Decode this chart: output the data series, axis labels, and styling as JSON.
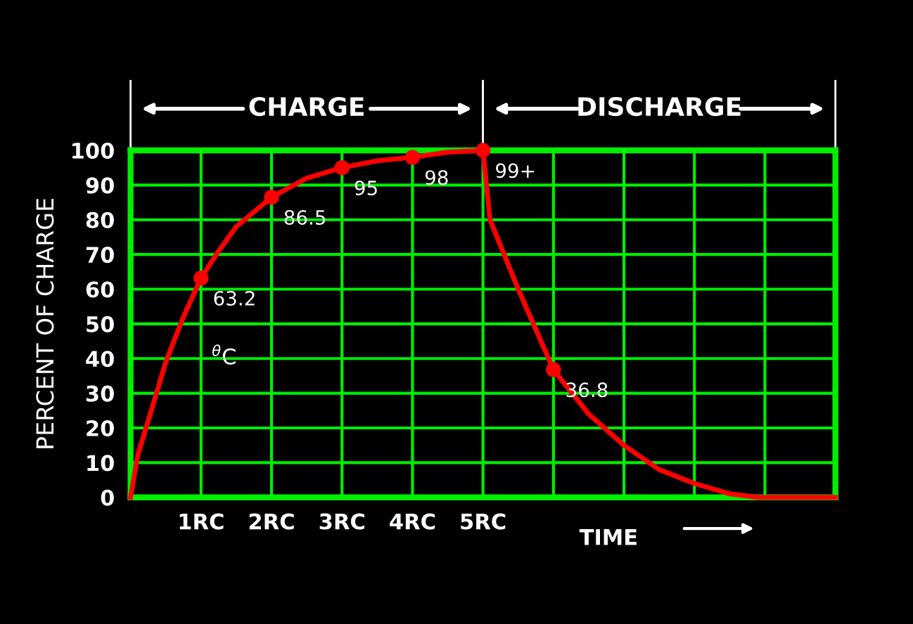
{
  "chart_data": {
    "type": "line",
    "xlabel": "TIME",
    "ylabel": "PERCENT OF CHARGE",
    "xlim": [
      0,
      10
    ],
    "ylim": [
      0,
      100
    ],
    "xticks": [
      {
        "value": 0,
        "label": null
      },
      {
        "value": 1,
        "label": "1RC"
      },
      {
        "value": 2,
        "label": "2RC"
      },
      {
        "value": 3,
        "label": "3RC"
      },
      {
        "value": 4,
        "label": "4RC"
      },
      {
        "value": 5,
        "label": "5RC"
      },
      {
        "value": 6,
        "label": null
      },
      {
        "value": 7,
        "label": null
      },
      {
        "value": 8,
        "label": null
      },
      {
        "value": 9,
        "label": null
      },
      {
        "value": 10,
        "label": null
      }
    ],
    "yticks": [
      0,
      10,
      20,
      30,
      40,
      50,
      60,
      70,
      80,
      90,
      100
    ],
    "grid": true,
    "series": [
      {
        "color": "#ff0000",
        "marker": "none",
        "x": [
          0,
          0.1,
          0.25,
          0.5,
          0.75,
          1,
          1.25,
          1.5,
          2,
          2.5,
          3,
          3.5,
          4,
          4.5,
          5,
          5.1,
          5.3,
          5.5,
          6,
          6.5,
          7,
          7.5,
          8,
          8.5,
          8.9,
          10
        ],
        "values": [
          0,
          12,
          22,
          39,
          52,
          63.2,
          71,
          78,
          86.5,
          92,
          95,
          97,
          98,
          99.5,
          100,
          80,
          70,
          60,
          36.8,
          24,
          15,
          8,
          4,
          1,
          0,
          0
        ]
      },
      {
        "type": "scatter",
        "color": "#ff0000",
        "marker": "circle",
        "x": [
          1,
          2,
          3,
          4,
          5,
          6
        ],
        "values": [
          63.2,
          86.5,
          95,
          98,
          100,
          36.8
        ],
        "value_labels": [
          "63.2",
          "86.5",
          "95",
          "98",
          "99+",
          "36.8"
        ]
      }
    ],
    "annotations": [
      "CHARGE",
      "DISCHARGE",
      "$^{θ}$C"
    ]
  }
}
